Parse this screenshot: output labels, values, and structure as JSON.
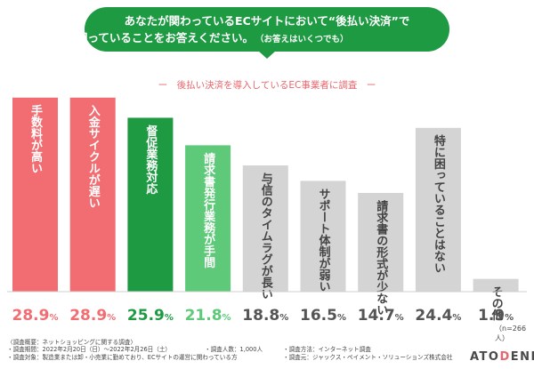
{
  "question": {
    "line1": "あなたが関わっているECサイトにおいて“後払い決済”で",
    "line2": "困っていることをお答えください。",
    "note": "（お答えはいくつでも）"
  },
  "subtitle": "ー　後払い決済を導入しているEC事業者に調査　ー",
  "chart_data": {
    "type": "bar",
    "categories": [
      "手数料が高い",
      "入金サイクルが遅い",
      "督促業務対応",
      "請求書発行業務が手間",
      "与信のタイムラグが長い",
      "サポート体制が弱い",
      "請求書の形式が少ない",
      "特に困っていることはない",
      "その他"
    ],
    "values": [
      28.9,
      28.9,
      25.9,
      21.8,
      18.8,
      16.5,
      14.7,
      24.4,
      1.9
    ],
    "value_labels": [
      {
        "num": "28.9",
        "unit": "%"
      },
      {
        "num": "28.9",
        "unit": "%"
      },
      {
        "num": "25.9",
        "unit": "%"
      },
      {
        "num": "21.8",
        "unit": "%"
      },
      {
        "num": "18.8",
        "unit": "%"
      },
      {
        "num": "16.5",
        "unit": "%"
      },
      {
        "num": "14.7",
        "unit": "%"
      },
      {
        "num": "24.4",
        "unit": "%"
      },
      {
        "num": "1.9",
        "unit": "%"
      }
    ],
    "bar_colors": [
      "#f26d72",
      "#f26d72",
      "#1e9a43",
      "#5ec979",
      "#d4d4d4",
      "#d4d4d4",
      "#d4d4d4",
      "#d4d4d4",
      "#d4d4d4"
    ],
    "label_colors": [
      "#ffffff",
      "#ffffff",
      "#ffffff",
      "#ffffff",
      "#444444",
      "#444444",
      "#444444",
      "#444444",
      "#444444"
    ],
    "value_colors": [
      "#f26d72",
      "#f26d72",
      "#1e9a43",
      "#5ec979",
      "#555555",
      "#555555",
      "#555555",
      "#555555",
      "#555555"
    ],
    "unit": "%",
    "sample": "（n=266人）"
  },
  "footer": {
    "left": [
      "〈調査概要：ネットショッピングに関する調査〉",
      "・調査期間：2022年2月20日（日）～2022年2月26日（土）",
      "・調査対象：製造業または卸・小売業に勤めており、ECサイトの運営に関わっている方"
    ],
    "mid": [
      "・調査人数：1,000人"
    ],
    "right": [
      "・調査方法：インターネット調査",
      "・調査元：ジャックス・ペイメント・ソリューションズ株式会社"
    ]
  },
  "logo": {
    "part1": "ATO",
    "part2": "D",
    "part3": "ENE"
  }
}
